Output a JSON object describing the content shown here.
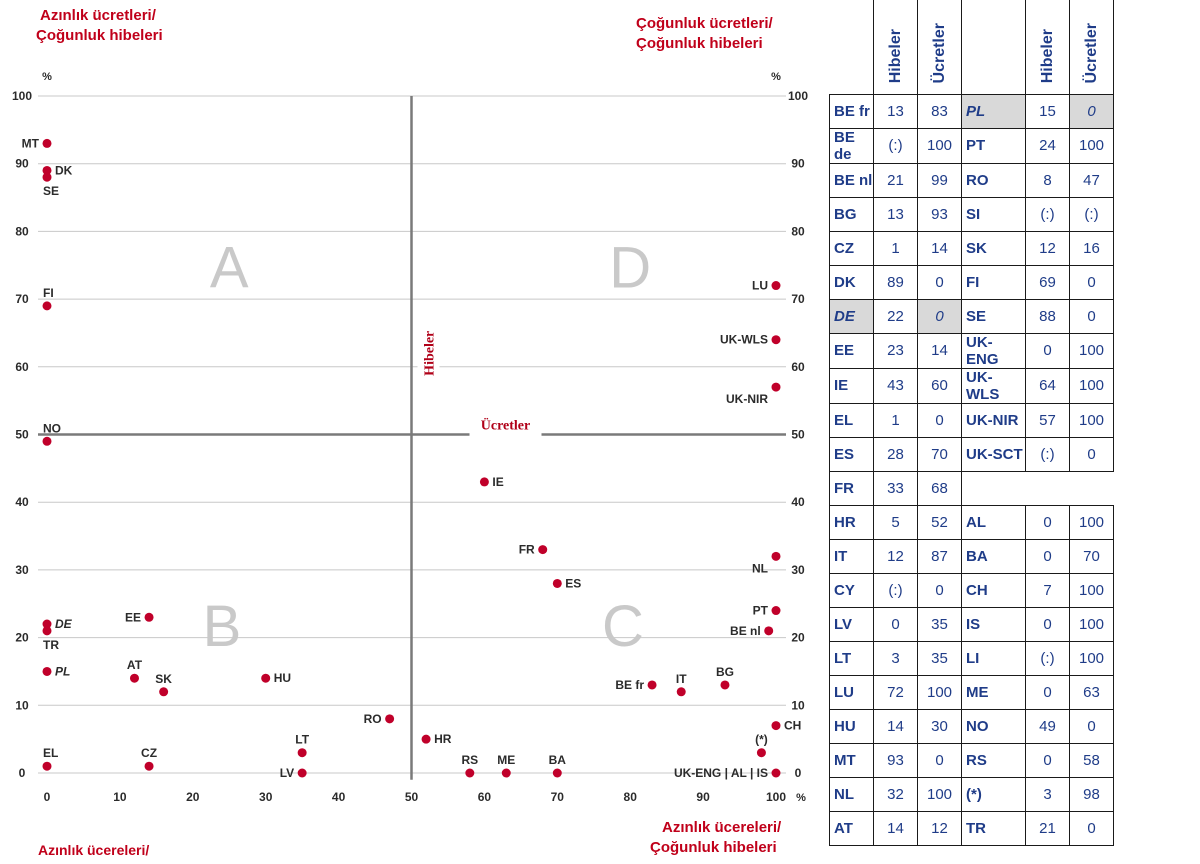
{
  "corners": {
    "top_left": [
      "Azınlık ücretleri/",
      "Çoğunluk hibeleri"
    ],
    "top_right": [
      "Çoğunluk ücretleri/",
      "Çoğunluk hibeleri"
    ],
    "bottom_left": [
      "Azınlık ücereleri/"
    ],
    "bottom_right": [
      "Azınlık ücereleri/",
      "Çoğunluk hibeleri"
    ]
  },
  "chart_data": {
    "type": "scatter",
    "axes": {
      "x": {
        "range": [
          0,
          100
        ],
        "ticks": [
          0,
          10,
          20,
          30,
          40,
          50,
          60,
          70,
          80,
          90,
          100
        ],
        "unit": "%"
      },
      "y": {
        "range": [
          0,
          100
        ],
        "ticks": [
          0,
          10,
          20,
          30,
          40,
          50,
          60,
          70,
          80,
          90,
          100
        ],
        "unit": "%"
      },
      "grid": true
    },
    "divider_labels": {
      "vertical": "Hibeler",
      "horizontal": "Ücretler"
    },
    "quadrants": [
      {
        "label": "A",
        "x": 25,
        "y": 75
      },
      {
        "label": "D",
        "x": 80,
        "y": 75
      },
      {
        "label": "B",
        "x": 24,
        "y": 22
      },
      {
        "label": "C",
        "x": 79,
        "y": 22
      }
    ],
    "point_color": "#c0002a",
    "points": [
      {
        "label": "MT",
        "x": 0,
        "y": 93,
        "anchor": "l",
        "italic": false
      },
      {
        "label": "DK",
        "x": 0,
        "y": 89,
        "anchor": "r",
        "italic": false
      },
      {
        "label": "SE",
        "x": 0,
        "y": 88,
        "anchor": "b",
        "italic": false
      },
      {
        "label": "FI",
        "x": 0,
        "y": 69,
        "anchor": "t",
        "italic": false
      },
      {
        "label": "NO",
        "x": 0,
        "y": 49,
        "anchor": "t",
        "italic": false
      },
      {
        "label": "DE",
        "x": 0,
        "y": 22,
        "anchor": "r",
        "italic": true
      },
      {
        "label": "TR",
        "x": 0,
        "y": 21,
        "anchor": "b",
        "italic": false
      },
      {
        "label": "PL",
        "x": 0,
        "y": 15,
        "anchor": "r",
        "italic": true
      },
      {
        "label": "EL",
        "x": 0,
        "y": 1,
        "anchor": "t",
        "italic": false
      },
      {
        "label": "EE",
        "x": 14,
        "y": 23,
        "anchor": "l",
        "italic": false
      },
      {
        "label": "AT",
        "x": 12,
        "y": 14,
        "anchor": "t",
        "italic": false
      },
      {
        "label": "SK",
        "x": 16,
        "y": 12,
        "anchor": "t",
        "italic": false
      },
      {
        "label": "CZ",
        "x": 14,
        "y": 1,
        "anchor": "t",
        "italic": false
      },
      {
        "label": "HU",
        "x": 30,
        "y": 14,
        "anchor": "r",
        "italic": false
      },
      {
        "label": "LT",
        "x": 35,
        "y": 3,
        "anchor": "t",
        "italic": false
      },
      {
        "label": "LV",
        "x": 35,
        "y": 0,
        "anchor": "l",
        "italic": false
      },
      {
        "label": "RO",
        "x": 47,
        "y": 8,
        "anchor": "l",
        "italic": false
      },
      {
        "label": "HR",
        "x": 52,
        "y": 5,
        "anchor": "r",
        "italic": false
      },
      {
        "label": "RS",
        "x": 58,
        "y": 0,
        "anchor": "t",
        "italic": false
      },
      {
        "label": "ME",
        "x": 63,
        "y": 0,
        "anchor": "t",
        "italic": false
      },
      {
        "label": "BA",
        "x": 70,
        "y": 0,
        "anchor": "t",
        "italic": false
      },
      {
        "label": "IE",
        "x": 60,
        "y": 43,
        "anchor": "r",
        "italic": false
      },
      {
        "label": "FR",
        "x": 68,
        "y": 33,
        "anchor": "l",
        "italic": false
      },
      {
        "label": "ES",
        "x": 70,
        "y": 28,
        "anchor": "r",
        "italic": false
      },
      {
        "label": "BE fr",
        "x": 83,
        "y": 13,
        "anchor": "l",
        "italic": false
      },
      {
        "label": "IT",
        "x": 87,
        "y": 12,
        "anchor": "t",
        "italic": false
      },
      {
        "label": "BG",
        "x": 93,
        "y": 13,
        "anchor": "t",
        "italic": false
      },
      {
        "label": "LU",
        "x": 100,
        "y": 72,
        "anchor": "l",
        "italic": false
      },
      {
        "label": "UK-WLS",
        "x": 100,
        "y": 64,
        "anchor": "l",
        "italic": false
      },
      {
        "label": "UK-NIR",
        "x": 100,
        "y": 57,
        "anchor": "bl",
        "italic": false
      },
      {
        "label": "NL",
        "x": 100,
        "y": 32,
        "anchor": "bl",
        "italic": false
      },
      {
        "label": "PT",
        "x": 100,
        "y": 24,
        "anchor": "l",
        "italic": false
      },
      {
        "label": "BE nl",
        "x": 99,
        "y": 21,
        "anchor": "l",
        "italic": false
      },
      {
        "label": "CH",
        "x": 100,
        "y": 7,
        "anchor": "r",
        "italic": false
      },
      {
        "label": "(*)",
        "x": 98,
        "y": 3,
        "anchor": "t",
        "italic": false
      },
      {
        "label": "UK-ENG | AL | IS",
        "x": 100,
        "y": 0,
        "anchor": "l",
        "italic": false
      }
    ]
  },
  "table": {
    "headers": [
      "Hibeler",
      "Ücretler",
      "Hibeler",
      "Ücretler"
    ],
    "rows": [
      [
        {
          "c": "BE fr"
        },
        {
          "v": "13"
        },
        {
          "v": "83"
        },
        {
          "c": "PL",
          "it": true,
          "grey": true
        },
        {
          "v": "15"
        },
        {
          "v": "0",
          "it": true,
          "grey": true
        }
      ],
      [
        {
          "c": "BE de"
        },
        {
          "v": "(:)"
        },
        {
          "v": "100"
        },
        {
          "c": "PT"
        },
        {
          "v": "24"
        },
        {
          "v": "100"
        }
      ],
      [
        {
          "c": "BE nl"
        },
        {
          "v": "21"
        },
        {
          "v": "99"
        },
        {
          "c": "RO"
        },
        {
          "v": "8"
        },
        {
          "v": "47"
        }
      ],
      [
        {
          "c": "BG"
        },
        {
          "v": "13"
        },
        {
          "v": "93"
        },
        {
          "c": "SI"
        },
        {
          "v": "(:)"
        },
        {
          "v": "(:)"
        }
      ],
      [
        {
          "c": "CZ"
        },
        {
          "v": "1"
        },
        {
          "v": "14"
        },
        {
          "c": "SK"
        },
        {
          "v": "12"
        },
        {
          "v": "16"
        }
      ],
      [
        {
          "c": "DK"
        },
        {
          "v": "89"
        },
        {
          "v": "0"
        },
        {
          "c": "FI"
        },
        {
          "v": "69"
        },
        {
          "v": "0"
        }
      ],
      [
        {
          "c": "DE",
          "it": true,
          "grey": true
        },
        {
          "v": "22"
        },
        {
          "v": "0",
          "it": true,
          "grey": true
        },
        {
          "c": "SE"
        },
        {
          "v": "88"
        },
        {
          "v": "0"
        }
      ],
      [
        {
          "c": "EE"
        },
        {
          "v": "23"
        },
        {
          "v": "14"
        },
        {
          "c": "UK-ENG"
        },
        {
          "v": "0"
        },
        {
          "v": "100"
        }
      ],
      [
        {
          "c": "IE"
        },
        {
          "v": "43"
        },
        {
          "v": "60"
        },
        {
          "c": "UK-WLS"
        },
        {
          "v": "64"
        },
        {
          "v": "100"
        }
      ],
      [
        {
          "c": "EL"
        },
        {
          "v": "1"
        },
        {
          "v": "0"
        },
        {
          "c": "UK-NIR"
        },
        {
          "v": "57"
        },
        {
          "v": "100"
        }
      ],
      [
        {
          "c": "ES"
        },
        {
          "v": "28"
        },
        {
          "v": "70"
        },
        {
          "c": "UK-SCT"
        },
        {
          "v": "(:)"
        },
        {
          "v": "0"
        }
      ],
      [
        {
          "c": "FR"
        },
        {
          "v": "33"
        },
        {
          "v": "68"
        },
        {
          "e": true
        },
        {
          "e": true
        },
        {
          "e": true
        }
      ],
      [
        {
          "c": "HR"
        },
        {
          "v": "5"
        },
        {
          "v": "52"
        },
        {
          "c": "AL"
        },
        {
          "v": "0"
        },
        {
          "v": "100"
        }
      ],
      [
        {
          "c": "IT"
        },
        {
          "v": "12"
        },
        {
          "v": "87"
        },
        {
          "c": "BA"
        },
        {
          "v": "0"
        },
        {
          "v": "70"
        }
      ],
      [
        {
          "c": "CY"
        },
        {
          "v": "(:)"
        },
        {
          "v": "0"
        },
        {
          "c": "CH"
        },
        {
          "v": "7"
        },
        {
          "v": "100"
        }
      ],
      [
        {
          "c": "LV"
        },
        {
          "v": "0"
        },
        {
          "v": "35"
        },
        {
          "c": "IS"
        },
        {
          "v": "0"
        },
        {
          "v": "100"
        }
      ],
      [
        {
          "c": "LT"
        },
        {
          "v": "3"
        },
        {
          "v": "35"
        },
        {
          "c": "LI"
        },
        {
          "v": "(:)"
        },
        {
          "v": "100"
        }
      ],
      [
        {
          "c": "LU"
        },
        {
          "v": "72"
        },
        {
          "v": "100"
        },
        {
          "c": "ME"
        },
        {
          "v": "0"
        },
        {
          "v": "63"
        }
      ],
      [
        {
          "c": "HU"
        },
        {
          "v": "14"
        },
        {
          "v": "30"
        },
        {
          "c": "NO"
        },
        {
          "v": "49"
        },
        {
          "v": "0"
        }
      ],
      [
        {
          "c": "MT"
        },
        {
          "v": "93"
        },
        {
          "v": "0"
        },
        {
          "c": "RS"
        },
        {
          "v": "0"
        },
        {
          "v": "58"
        }
      ],
      [
        {
          "c": "NL"
        },
        {
          "v": "32"
        },
        {
          "v": "100"
        },
        {
          "c": "(*)"
        },
        {
          "v": "3"
        },
        {
          "v": "98"
        }
      ],
      [
        {
          "c": "AT"
        },
        {
          "v": "14"
        },
        {
          "v": "12"
        },
        {
          "c": "TR"
        },
        {
          "v": "21"
        },
        {
          "v": "0"
        }
      ]
    ]
  }
}
